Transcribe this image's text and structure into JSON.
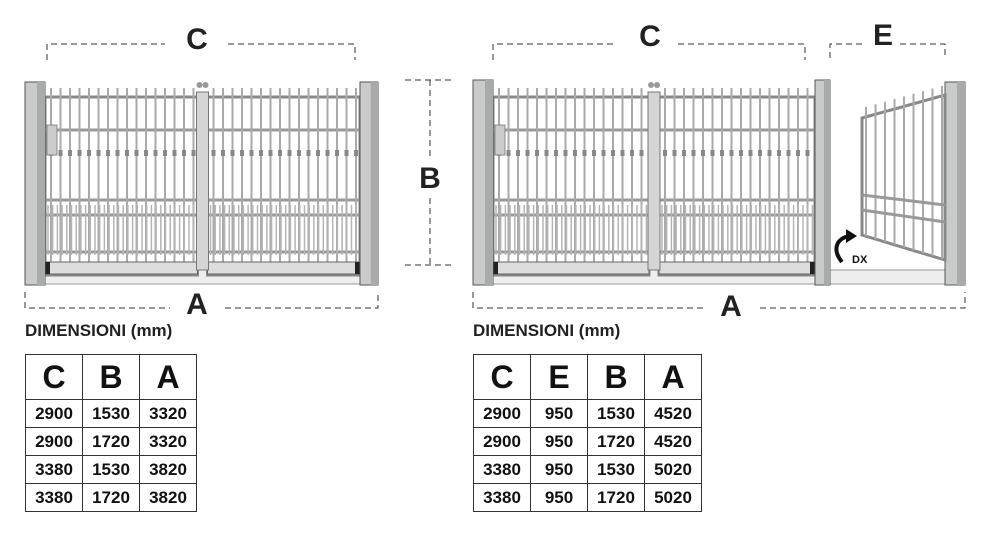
{
  "left_drawing": {
    "top_dimension": "C",
    "height_dimension": "B",
    "bottom_dimension": "A"
  },
  "right_drawing": {
    "top_dimension": "C",
    "leaf_dimension": "E",
    "bottom_dimension": "A",
    "opening_direction": "DX"
  },
  "left_table": {
    "caption": "DIMENSIONI (mm)",
    "header": [
      "C",
      "B",
      "A"
    ],
    "rows": [
      [
        2900,
        1530,
        3320
      ],
      [
        2900,
        1720,
        3320
      ],
      [
        3380,
        1530,
        3820
      ],
      [
        3380,
        1720,
        3820
      ]
    ]
  },
  "right_table": {
    "caption": "DIMENSIONI (mm)",
    "header": [
      "C",
      "E",
      "B",
      "A"
    ],
    "rows": [
      [
        2900,
        950,
        1530,
        4520
      ],
      [
        2900,
        950,
        1720,
        4520
      ],
      [
        3380,
        950,
        1530,
        5020
      ],
      [
        3380,
        950,
        1720,
        5020
      ]
    ]
  }
}
